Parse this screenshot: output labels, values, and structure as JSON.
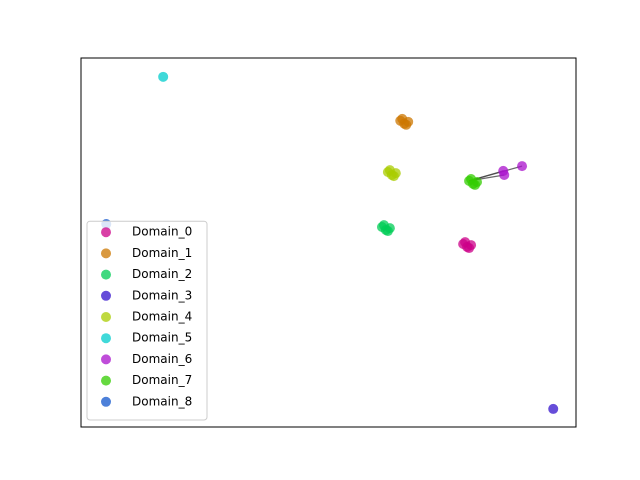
{
  "chart_data": {
    "type": "scatter",
    "xlim": [
      0,
      100
    ],
    "ylim": [
      0,
      100
    ],
    "legend": "lower left",
    "series": [
      {
        "name": "Domain_0",
        "color": "#cc0088",
        "x": [
          77.2,
          78.0,
          78.8,
          77.6,
          78.4
        ],
        "y": [
          49.6,
          48.8,
          49.3,
          50.1,
          48.5
        ]
      },
      {
        "name": "Domain_1",
        "color": "#cc7700",
        "x": [
          64.5,
          65.3,
          66.1,
          64.9,
          65.7
        ],
        "y": [
          83.0,
          82.2,
          82.7,
          83.5,
          81.9
        ]
      },
      {
        "name": "Domain_2",
        "color": "#00cc55",
        "x": [
          60.8,
          61.6,
          62.4,
          61.2,
          62.0
        ],
        "y": [
          54.2,
          53.4,
          53.9,
          54.7,
          53.1
        ]
      },
      {
        "name": "Domain_3",
        "color": "#3311cc",
        "x": [
          95.4
        ],
        "y": [
          4.9
        ]
      },
      {
        "name": "Domain_4",
        "color": "#aacc00",
        "x": [
          62.0,
          62.8,
          63.6,
          62.4,
          63.2
        ],
        "y": [
          69.1,
          68.3,
          68.8,
          69.6,
          68.0
        ]
      },
      {
        "name": "Domain_5",
        "color": "#00cccc",
        "x": [
          16.6
        ],
        "y": [
          94.9
        ]
      },
      {
        "name": "Domain_6",
        "color": "#aa11cc",
        "x": [
          85.3,
          85.5,
          89.1
        ],
        "y": [
          69.4,
          68.3,
          70.7
        ]
      },
      {
        "name": "Domain_7",
        "color": "#33cc00",
        "x": [
          78.4,
          79.2,
          80.0,
          78.8,
          79.6
        ],
        "y": [
          66.7,
          65.9,
          66.4,
          67.2,
          65.6
        ]
      },
      {
        "name": "Domain_8",
        "color": "#1155cc",
        "x": [
          5.1
        ],
        "y": [
          55.0
        ]
      }
    ]
  }
}
